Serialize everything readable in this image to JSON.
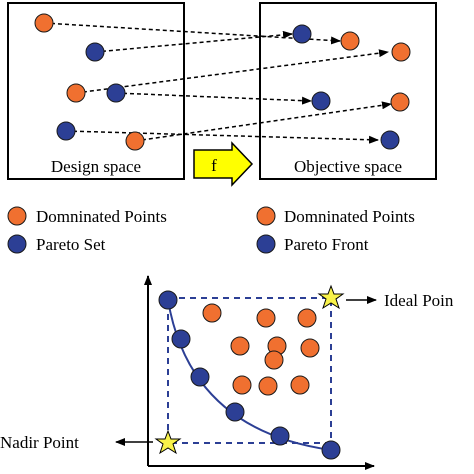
{
  "top": {
    "design_label": "Design space",
    "objective_label": "Objective space",
    "mapping_label": "f"
  },
  "legend": {
    "left_dominated": "Domninated Points",
    "left_pareto": "Pareto Set",
    "right_dominated": "Domninated Points",
    "right_pareto": "Pareto Front"
  },
  "bottom": {
    "ideal_label": "Ideal Poin",
    "nadir_label": "Nadir Point"
  },
  "colors": {
    "orange": "#f07030",
    "blue": "#2c3f95",
    "star": "#f8f24a",
    "arrow_fill": "#ffff00"
  }
}
